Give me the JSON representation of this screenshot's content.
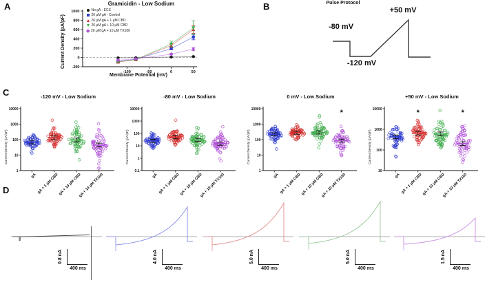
{
  "panel_labels": {
    "a": "A",
    "b": "B",
    "c": "C",
    "d": "D"
  },
  "sig_symbol": "*",
  "colors": {
    "black": "#1a1a1a",
    "blue": "#2b38cd",
    "red": "#d42d2d",
    "green": "#3dab4a",
    "purple": "#ae4fd6",
    "trace_black": "#3a3a3a",
    "trace_blue": "#8f96e8",
    "trace_red": "#e39595",
    "trace_green": "#a0cba0",
    "trace_purple": "#cb97e6",
    "baseline": "#909090",
    "axis": "#1a1a1a"
  },
  "panelB": {
    "title": "Pulse Protocol",
    "hold_label": "-80 mV",
    "peak_label": "+50 mV",
    "bottom_label": "-120 mV"
  },
  "panelD": {
    "time_label": "400 ms",
    "traces": [
      {
        "amp_label": "0.8 nA",
        "color_key": "black",
        "peak": 3,
        "dip": 5,
        "flat": true
      },
      {
        "amp_label": "4.0 nA",
        "color_key": "blue",
        "peak": 43,
        "dip": 12,
        "flat": false
      },
      {
        "amp_label": "5.0 nA",
        "color_key": "red",
        "peak": 49,
        "dip": 12,
        "flat": false
      },
      {
        "amp_label": "5.0 nA",
        "color_key": "green",
        "peak": 51,
        "dip": 10,
        "flat": false
      },
      {
        "amp_label": "1.5 nA",
        "color_key": "purple",
        "peak": 27,
        "dip": 11,
        "flat": false
      }
    ]
  },
  "chart_data": [
    {
      "id": "iv-curve",
      "type": "line",
      "title": "Gramicidin - Low Sodium",
      "xlabel": "Membrane Potential (mV)",
      "ylabel": "Current Density (pA/pF)",
      "x": [
        -120,
        -80,
        0,
        50
      ],
      "xticks": [
        -100,
        -50,
        0,
        50
      ],
      "ylim": [
        -200,
        1000
      ],
      "ytick_step": 200,
      "series": [
        {
          "name": "No gA - ECS",
          "marker": "circle",
          "color_key": "black",
          "values": [
            -8,
            -5,
            8,
            18
          ],
          "errors": [
            4,
            3,
            6,
            8
          ]
        },
        {
          "name": "26 μM gA - Control",
          "marker": "square",
          "color_key": "blue",
          "values": [
            -85,
            -40,
            190,
            440
          ],
          "errors": [
            15,
            8,
            25,
            60
          ]
        },
        {
          "name": "26 μM gA + 1 μM CBD",
          "marker": "triangle-up",
          "color_key": "red",
          "values": [
            -100,
            -48,
            255,
            600
          ],
          "errors": [
            18,
            10,
            35,
            80
          ]
        },
        {
          "name": "26 μM gA + 10 μM CBD",
          "marker": "triangle-down",
          "color_key": "green",
          "values": [
            -90,
            -45,
            290,
            640
          ],
          "errors": [
            20,
            12,
            60,
            150
          ]
        },
        {
          "name": "26 μM gA + 10 μM TX100",
          "marker": "diamond",
          "color_key": "purple",
          "values": [
            -60,
            -30,
            70,
            180
          ],
          "errors": [
            12,
            6,
            15,
            35
          ]
        }
      ]
    },
    {
      "id": "scatter-minus120mV",
      "type": "scatter",
      "title": "-120 mV - Low Sodium",
      "ylabel": "Current Density (pA/pF)",
      "log_ylim": [
        1,
        10000
      ],
      "err_dec": 0.12,
      "groups": [
        {
          "label": "gA",
          "color_key": "blue",
          "n": 60,
          "mean": 70,
          "sd_dec": 0.26,
          "sig": false,
          "outliers": []
        },
        {
          "label": "gA + 1 μM CBD",
          "color_key": "red",
          "n": 60,
          "mean": 130,
          "sd_dec": 0.27,
          "sig": false,
          "outliers": [
            1800
          ]
        },
        {
          "label": "gA + 10 μM CBD",
          "color_key": "green",
          "n": 60,
          "mean": 95,
          "sd_dec": 0.36,
          "sig": false,
          "outliers": [
            600,
            5
          ]
        },
        {
          "label": "gA + 10 μM TX100",
          "color_key": "purple",
          "n": 60,
          "mean": 45,
          "sd_dec": 0.4,
          "sig": false,
          "outliers": [
            1050,
            1.4
          ]
        }
      ]
    },
    {
      "id": "scatter-minus80mV",
      "type": "scatter",
      "title": "-80 mV - Low Sodium",
      "ylabel": "Current Density (pA/pF)",
      "log_ylim": [
        0.1,
        10000
      ],
      "err_dec": 0.13,
      "groups": [
        {
          "label": "gA",
          "color_key": "blue",
          "n": 60,
          "mean": 25,
          "sd_dec": 0.28,
          "sig": false,
          "outliers": [
            110
          ]
        },
        {
          "label": "gA + 1 μM CBD",
          "color_key": "red",
          "n": 60,
          "mean": 50,
          "sd_dec": 0.3,
          "sig": false,
          "outliers": [
            1200
          ]
        },
        {
          "label": "gA + 10 μM CBD",
          "color_key": "green",
          "n": 60,
          "mean": 30,
          "sd_dec": 0.38,
          "sig": false,
          "outliers": [
            300,
            2.5
          ]
        },
        {
          "label": "gA + 10 μM TX100",
          "color_key": "purple",
          "n": 60,
          "mean": 15,
          "sd_dec": 0.38,
          "sig": false,
          "outliers": [
            350,
            0.6
          ]
        }
      ]
    },
    {
      "id": "scatter-0mV",
      "type": "scatter",
      "title": "0 mV - Low Sodium",
      "ylabel": "Current Density (pA/pF)",
      "log_ylim": [
        1,
        10000
      ],
      "err_dec": 0.1,
      "groups": [
        {
          "label": "gA",
          "color_key": "blue",
          "n": 60,
          "mean": 220,
          "sd_dec": 0.24,
          "sig": false,
          "outliers": [
            25
          ]
        },
        {
          "label": "gA + 1 μM CBD",
          "color_key": "red",
          "n": 60,
          "mean": 280,
          "sd_dec": 0.24,
          "sig": false,
          "outliers": []
        },
        {
          "label": "gA + 10 μM CBD",
          "color_key": "green",
          "n": 60,
          "mean": 290,
          "sd_dec": 0.32,
          "sig": false,
          "outliers": [
            3500
          ]
        },
        {
          "label": "gA + 10 μM TX100",
          "color_key": "purple",
          "n": 60,
          "mean": 85,
          "sd_dec": 0.34,
          "sig": true,
          "outliers": []
        }
      ]
    },
    {
      "id": "scatter-plus50mV",
      "type": "scatter",
      "title": "+50 mV - Low Sodium",
      "ylabel": "Current Density (pA/pF)",
      "log_ylim": [
        10,
        10000
      ],
      "err_dec": 0.09,
      "groups": [
        {
          "label": "gA",
          "color_key": "blue",
          "n": 60,
          "mean": 430,
          "sd_dec": 0.26,
          "sig": false,
          "outliers": [
            50
          ]
        },
        {
          "label": "gA + 1 μM CBD",
          "color_key": "red",
          "n": 60,
          "mean": 650,
          "sd_dec": 0.24,
          "sig": true,
          "outliers": []
        },
        {
          "label": "gA + 10 μM CBD",
          "color_key": "green",
          "n": 60,
          "mean": 600,
          "sd_dec": 0.32,
          "sig": false,
          "outliers": [
            8000
          ]
        },
        {
          "label": "gA + 10 μM TX100",
          "color_key": "purple",
          "n": 60,
          "mean": 200,
          "sd_dec": 0.38,
          "sig": true,
          "outliers": [
            1500
          ]
        }
      ]
    }
  ]
}
